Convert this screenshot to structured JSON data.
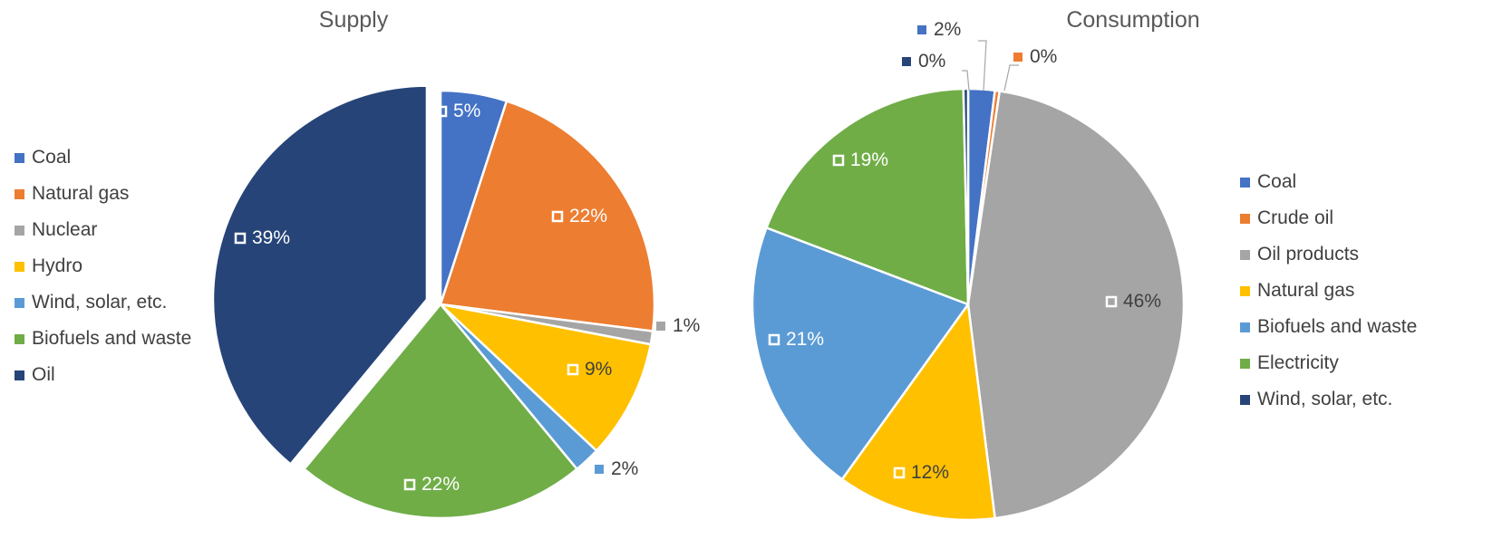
{
  "chart_data": [
    {
      "type": "pie",
      "title": "Supply",
      "legend_position": "left",
      "series": [
        {
          "name": "Coal",
          "value": 5,
          "label": "5%",
          "color": "#4472C4"
        },
        {
          "name": "Natural gas",
          "value": 22,
          "label": "22%",
          "color": "#ED7D31"
        },
        {
          "name": "Nuclear",
          "value": 1,
          "label": "1%",
          "color": "#A5A5A5"
        },
        {
          "name": "Hydro",
          "value": 9,
          "label": "9%",
          "color": "#FFC000"
        },
        {
          "name": "Wind, solar, etc.",
          "value": 2,
          "label": "2%",
          "color": "#5B9BD5"
        },
        {
          "name": "Biofuels and waste",
          "value": 22,
          "label": "22%",
          "color": "#70AD47"
        },
        {
          "name": "Oil",
          "value": 39,
          "label": "39%",
          "color": "#264478"
        }
      ],
      "exploded": [
        "Oil"
      ]
    },
    {
      "type": "pie",
      "title": "Consumption",
      "legend_position": "right",
      "series": [
        {
          "name": "Coal",
          "value": 2,
          "label": "2%",
          "color": "#4472C4"
        },
        {
          "name": "Crude oil",
          "value": 0,
          "label": "0%",
          "color": "#ED7D31"
        },
        {
          "name": "Oil products",
          "value": 46,
          "label": "46%",
          "color": "#A5A5A5"
        },
        {
          "name": "Natural gas",
          "value": 12,
          "label": "12%",
          "color": "#FFC000"
        },
        {
          "name": "Biofuels and waste",
          "value": 21,
          "label": "21%",
          "color": "#5B9BD5"
        },
        {
          "name": "Electricity",
          "value": 19,
          "label": "19%",
          "color": "#70AD47"
        },
        {
          "name": "Wind, solar, etc.",
          "value": 0,
          "label": "0%",
          "color": "#264478"
        }
      ]
    }
  ]
}
